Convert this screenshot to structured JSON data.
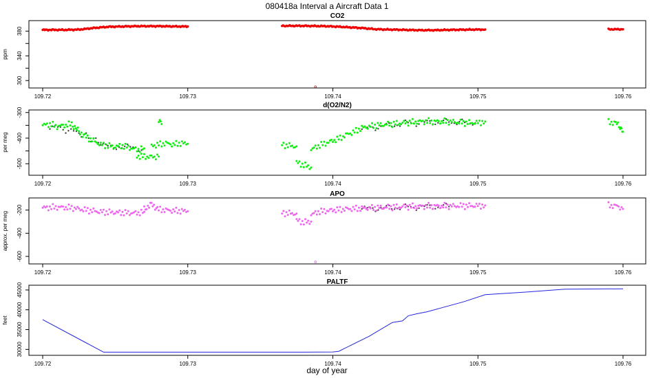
{
  "page": {
    "title": "080418a   Interval a Aircraft Data 1",
    "xlabel": "day of year"
  },
  "chart_data": [
    {
      "type": "scatter",
      "title": "CO2",
      "xlabel": "",
      "ylabel": "ppm",
      "xlim": [
        109.72,
        109.76
      ],
      "ylim": [
        288,
        397
      ],
      "xticks": [
        "109.72",
        "109.73",
        "109.74",
        "109.75",
        "109.76"
      ],
      "yticks": [
        {
          "v": 300,
          "label": "300"
        },
        {
          "v": 320,
          "label": ""
        },
        {
          "v": 340,
          "label": "340"
        },
        {
          "v": 360,
          "label": ""
        },
        {
          "v": 380,
          "label": "380"
        }
      ],
      "color": "#ee0000",
      "outlier_color": "#cc2222",
      "segments": [
        {
          "x": [
            109.72,
            109.7215,
            109.7225,
            109.7235,
            109.7245,
            109.7265,
            109.728,
            109.7295,
            109.73
          ],
          "y": [
            382,
            382,
            382.5,
            385,
            387,
            388,
            388,
            387.5,
            387.5
          ]
        },
        {
          "x": [
            109.7365,
            109.738,
            109.7395,
            109.7405,
            109.742,
            109.743,
            109.744,
            109.745,
            109.746,
            109.747,
            109.748,
            109.7495,
            109.7505
          ],
          "y": [
            388.5,
            388.5,
            388,
            387,
            385,
            383,
            382.5,
            382,
            381.5,
            381.5,
            382,
            382.5,
            382.5
          ]
        },
        {
          "x": [
            109.759,
            109.7595,
            109.76
          ],
          "y": [
            383,
            383,
            383
          ]
        }
      ],
      "outliers": [
        {
          "x": 109.7388,
          "y": 290
        }
      ]
    },
    {
      "type": "scatter",
      "title": "d(O2/N2)",
      "xlabel": "",
      "ylabel": "per meg",
      "xlim": [
        109.72,
        109.76
      ],
      "ylim": [
        -545,
        -290
      ],
      "xticks": [
        "109.72",
        "109.73",
        "109.74",
        "109.75",
        "109.76"
      ],
      "yticks": [
        {
          "v": -500,
          "label": "-500"
        },
        {
          "v": -450,
          "label": ""
        },
        {
          "v": -400,
          "label": "-400"
        },
        {
          "v": -350,
          "label": ""
        },
        {
          "v": -300,
          "label": "-300"
        }
      ],
      "color": "#11ee11",
      "dark_color": "#2e4a2e",
      "segments": [
        {
          "x": [
            109.72,
            109.7205,
            109.721,
            109.7215,
            109.722,
            109.7225,
            109.723,
            109.7235,
            109.724,
            109.7245,
            109.725,
            109.7255,
            109.726,
            109.7265,
            109.727
          ],
          "y": [
            -350,
            -345,
            -355,
            -350,
            -345,
            -375,
            -395,
            -410,
            -425,
            -430,
            -433,
            -430,
            -438,
            -445,
            -440
          ]
        },
        {
          "x": [
            109.7265,
            109.727,
            109.7275,
            109.728
          ],
          "y": [
            -470,
            -472,
            -473,
            -472
          ]
        },
        {
          "x": [
            109.7275,
            109.728,
            109.7285,
            109.729,
            109.7295,
            109.73
          ],
          "y": [
            -430,
            -425,
            -420,
            -425,
            -420,
            -422
          ]
        },
        {
          "x": [
            109.728,
            109.7282
          ],
          "y": [
            -334,
            -345
          ]
        },
        {
          "x": [
            109.7365,
            109.737,
            109.7375
          ],
          "y": [
            -425,
            -430,
            -432
          ]
        },
        {
          "x": [
            109.7375,
            109.738,
            109.7385
          ],
          "y": [
            -495,
            -505,
            -515
          ]
        },
        {
          "x": [
            109.7385,
            109.739,
            109.7395,
            109.74,
            109.7405,
            109.741,
            109.7415,
            109.742,
            109.743,
            109.744,
            109.745,
            109.746,
            109.747,
            109.748,
            109.749,
            109.75,
            109.7505
          ],
          "y": [
            -445,
            -430,
            -420,
            -410,
            -400,
            -385,
            -375,
            -360,
            -350,
            -345,
            -340,
            -335,
            -335,
            -335,
            -340,
            -340,
            -335
          ]
        },
        {
          "x": [
            109.759,
            109.7595,
            109.7598,
            109.76
          ],
          "y": [
            -338,
            -340,
            -355,
            -375
          ]
        }
      ],
      "dark_segments": [
        {
          "x": [
            109.7205,
            109.7225,
            109.7245,
            109.727
          ],
          "y": [
            -352,
            -380,
            -432,
            -440
          ]
        },
        {
          "x": [
            109.742,
            109.745,
            109.748,
            109.75
          ],
          "y": [
            -365,
            -342,
            -337,
            -342
          ]
        }
      ]
    },
    {
      "type": "scatter",
      "title": "APO",
      "xlabel": "",
      "ylabel": "approx. per meg",
      "xlim": [
        109.72,
        109.76
      ],
      "ylim": [
        -665,
        -95
      ],
      "xticks": [
        "109.72",
        "109.73",
        "109.74",
        "109.75",
        "109.76"
      ],
      "yticks": [
        {
          "v": -600,
          "label": "-600"
        },
        {
          "v": -400,
          "label": "-400"
        },
        {
          "v": -200,
          "label": "-200"
        }
      ],
      "color": "#ee66ee",
      "dark_color": "#5a3a5a",
      "segments": [
        {
          "x": [
            109.72,
            109.721,
            109.722,
            109.723,
            109.724,
            109.725,
            109.726,
            109.7265,
            109.727
          ],
          "y": [
            -180,
            -175,
            -180,
            -200,
            -215,
            -220,
            -225,
            -225,
            -215
          ]
        },
        {
          "x": [
            109.727,
            109.7275,
            109.728,
            109.729,
            109.73
          ],
          "y": [
            -190,
            -150,
            -195,
            -205,
            -210
          ]
        },
        {
          "x": [
            109.7365,
            109.737,
            109.7375
          ],
          "y": [
            -225,
            -228,
            -230
          ]
        },
        {
          "x": [
            109.7375,
            109.738,
            109.7385
          ],
          "y": [
            -290,
            -305,
            -300
          ]
        },
        {
          "x": [
            109.7385,
            109.739,
            109.74,
            109.741,
            109.742,
            109.743,
            109.744,
            109.745,
            109.746,
            109.747,
            109.748,
            109.749,
            109.75,
            109.7505
          ],
          "y": [
            -240,
            -215,
            -200,
            -190,
            -185,
            -180,
            -175,
            -170,
            -168,
            -165,
            -165,
            -163,
            -162,
            -160
          ]
        },
        {
          "x": [
            109.759,
            109.7595,
            109.7598,
            109.76
          ],
          "y": [
            -160,
            -163,
            -175,
            -190
          ]
        }
      ],
      "dark_segments": [
        {
          "x": [
            109.742,
            109.745,
            109.748
          ],
          "y": [
            -190,
            -175,
            -170
          ]
        }
      ],
      "outliers": [
        {
          "x": 109.7388,
          "y": -648
        }
      ]
    },
    {
      "type": "line",
      "title": "PALTF",
      "xlabel": "",
      "ylabel": "feet",
      "xlim": [
        109.72,
        109.76
      ],
      "ylim": [
        28500,
        46200
      ],
      "xticks": [
        "109.72",
        "109.73",
        "109.74",
        "109.75",
        "109.76"
      ],
      "yticks": [
        {
          "v": 30000,
          "label": "30000"
        },
        {
          "v": 35000,
          "label": "35000"
        },
        {
          "v": 40000,
          "label": "40000"
        },
        {
          "v": 45000,
          "label": "45000"
        }
      ],
      "color": "#2222dd",
      "x": [
        109.72,
        109.7242,
        109.726,
        109.728,
        109.73,
        109.732,
        109.734,
        109.736,
        109.738,
        109.74,
        109.7404,
        109.7425,
        109.7441,
        109.7448,
        109.7452,
        109.7458,
        109.7465,
        109.7475,
        109.749,
        109.7505,
        109.753,
        109.756,
        109.76
      ],
      "y": [
        37500,
        29300,
        29300,
        29300,
        29300,
        29300,
        29300,
        29300,
        29300,
        29350,
        29500,
        33300,
        36800,
        37200,
        38500,
        39000,
        39500,
        40500,
        42000,
        43800,
        44400,
        45200,
        45300
      ]
    }
  ]
}
